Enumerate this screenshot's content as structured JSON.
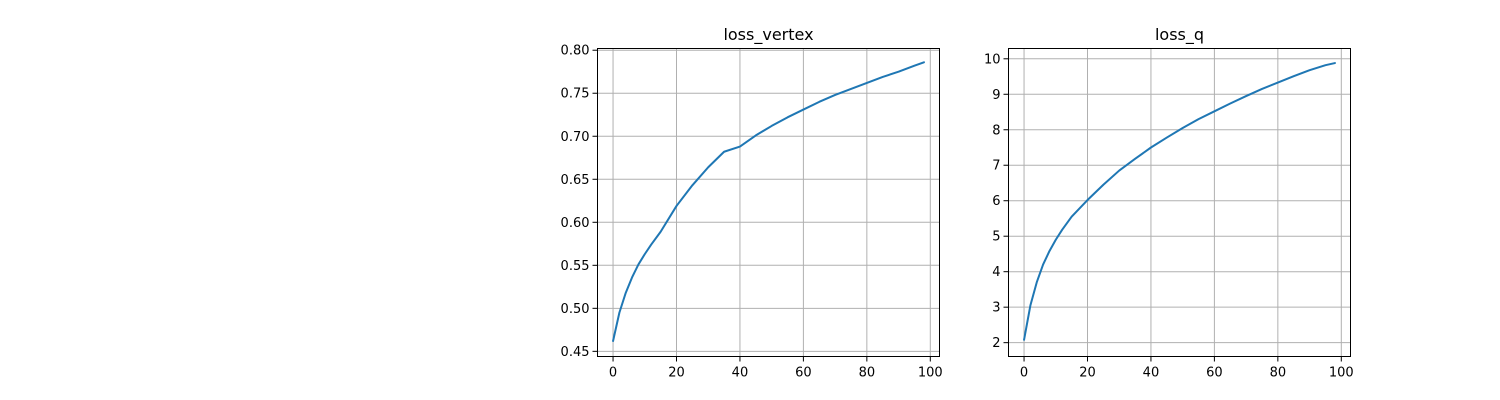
{
  "chart_data": [
    {
      "type": "line",
      "title": "loss_vertex",
      "xlabel": "",
      "ylabel": "",
      "xlim": [
        -4.9,
        102.9
      ],
      "ylim": [
        0.444,
        0.802
      ],
      "xticks": [
        0,
        20,
        40,
        60,
        80,
        100
      ],
      "yticks": [
        0.45,
        0.5,
        0.55,
        0.6,
        0.65,
        0.7,
        0.75,
        0.8
      ],
      "ytick_labels": [
        "0.45",
        "0.50",
        "0.55",
        "0.60",
        "0.65",
        "0.70",
        "0.75",
        "0.80"
      ],
      "grid": true,
      "series": [
        {
          "color": "#1f77b4",
          "x": [
            0,
            2,
            4,
            6,
            8,
            10,
            12,
            15,
            20,
            25,
            30,
            35,
            40,
            45,
            50,
            55,
            60,
            65,
            70,
            75,
            80,
            85,
            90,
            95,
            98
          ],
          "y": [
            0.462,
            0.495,
            0.518,
            0.536,
            0.551,
            0.563,
            0.574,
            0.589,
            0.619,
            0.643,
            0.664,
            0.682,
            0.688,
            0.701,
            0.712,
            0.722,
            0.731,
            0.74,
            0.748,
            0.755,
            0.762,
            0.769,
            0.775,
            0.782,
            0.786
          ]
        }
      ]
    },
    {
      "type": "line",
      "title": "loss_q",
      "xlabel": "",
      "ylabel": "",
      "xlim": [
        -4.9,
        102.9
      ],
      "ylim": [
        1.61,
        10.29
      ],
      "xticks": [
        0,
        20,
        40,
        60,
        80,
        100
      ],
      "yticks": [
        2,
        3,
        4,
        5,
        6,
        7,
        8,
        9,
        10
      ],
      "ytick_labels": [
        "2",
        "3",
        "4",
        "5",
        "6",
        "7",
        "8",
        "9",
        "10"
      ],
      "grid": true,
      "series": [
        {
          "color": "#1f77b4",
          "x": [
            0,
            2,
            4,
            6,
            8,
            10,
            12,
            15,
            20,
            25,
            30,
            35,
            40,
            45,
            50,
            55,
            60,
            65,
            70,
            75,
            80,
            85,
            90,
            95,
            98
          ],
          "y": [
            2.08,
            3.05,
            3.7,
            4.2,
            4.58,
            4.9,
            5.18,
            5.55,
            6.02,
            6.45,
            6.85,
            7.18,
            7.5,
            7.78,
            8.05,
            8.3,
            8.52,
            8.74,
            8.95,
            9.15,
            9.33,
            9.51,
            9.68,
            9.82,
            9.88
          ]
        }
      ]
    }
  ]
}
